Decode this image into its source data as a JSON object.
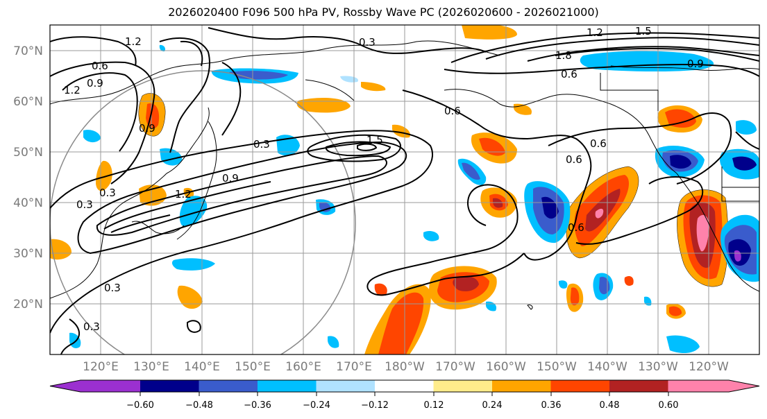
{
  "title": "2026020400 F096 500 hPa PV, Rossby Wave PC (2026020600 - 2026021000)",
  "lat_labels": [
    "70°N",
    "60°N",
    "50°N",
    "40°N",
    "30°N",
    "20°N"
  ],
  "lon_labels": [
    "120°E",
    "130°E",
    "140°E",
    "150°E",
    "160°E",
    "170°E",
    "180°W",
    "170°W",
    "160°W",
    "150°W",
    "140°W",
    "130°W",
    "120°W"
  ],
  "colorbar": {
    "colors": [
      "#9b30d0",
      "#00008b",
      "#3a5ccc",
      "#00bfff",
      "#b0e2ff",
      "#ffffff",
      "#ffec8b",
      "#ffa500",
      "#ff4500",
      "#b22222",
      "#ff82ab"
    ],
    "tick_labels": [
      "−0.60",
      "−0.48",
      "−0.36",
      "−0.24",
      "−0.12",
      "0.12",
      "0.24",
      "0.36",
      "0.48",
      "0.60"
    ]
  },
  "contour_labels": [
    "0.3",
    "1.2",
    "1.5",
    "1.8",
    "0.9",
    "0.6",
    "0.6",
    "0.6",
    "0.6",
    "0.6",
    "0.9",
    "1.2",
    "0.3",
    "1.2",
    "0.9",
    "0.6",
    "0.3",
    "0.9",
    "1.2",
    "0.3",
    "0.3",
    "0.3",
    "1.5"
  ]
}
